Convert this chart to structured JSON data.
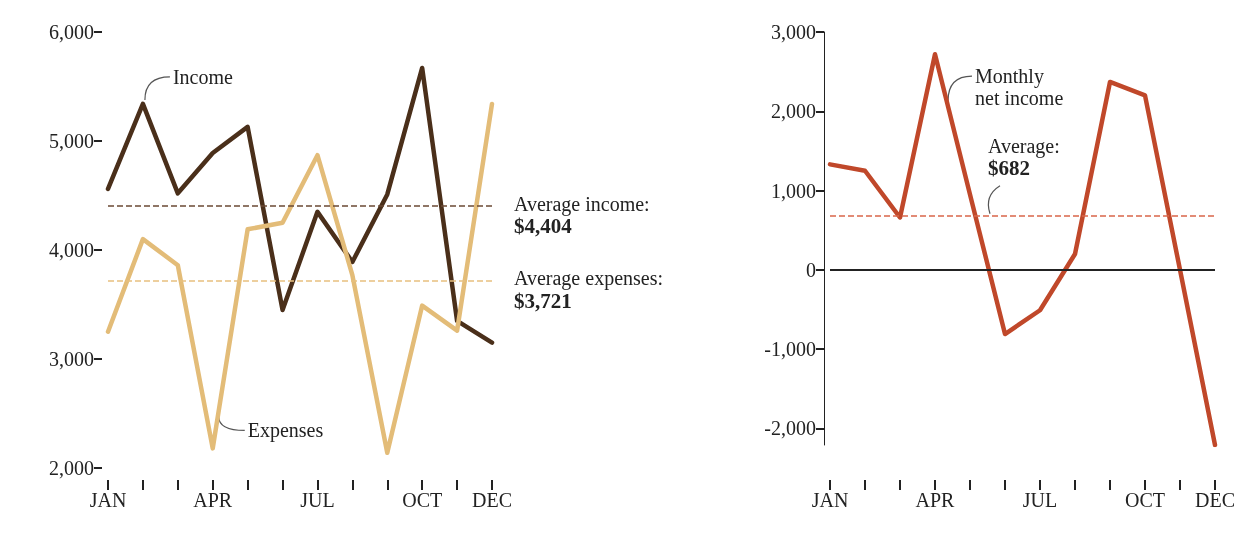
{
  "chart_data": [
    {
      "type": "line",
      "categories": [
        "JAN",
        null,
        null,
        "APR",
        null,
        null,
        "JUL",
        null,
        null,
        "OCT",
        null,
        "DEC"
      ],
      "ylim": [
        2000,
        6000
      ],
      "yticks": [
        {
          "value": 2000,
          "label": "2,000"
        },
        {
          "value": 3000,
          "label": "3,000"
        },
        {
          "value": 4000,
          "label": "4,000"
        },
        {
          "value": 5000,
          "label": "5,000"
        },
        {
          "value": 6000,
          "label": "6,000"
        }
      ],
      "series": [
        {
          "name": "Income",
          "color": "#4a2f1a",
          "values": [
            4560,
            5340,
            4520,
            4890,
            5130,
            3450,
            4350,
            3890,
            4510,
            5670,
            3350,
            3150
          ]
        },
        {
          "name": "Expenses",
          "color": "#e3bc78",
          "values": [
            3250,
            4100,
            3860,
            2180,
            4190,
            4250,
            4870,
            3770,
            2140,
            3490,
            3260,
            5340
          ]
        }
      ],
      "ref_lines": [
        {
          "axis": "y",
          "value": 4404,
          "label": "Average income: $4,404",
          "color": "#6b4a35",
          "line_style": "dashed"
        },
        {
          "axis": "y",
          "value": 3721,
          "label": "Average expenses: $3,721",
          "color": "#e8c07f",
          "line_style": "dashed"
        }
      ]
    },
    {
      "type": "line",
      "categories": [
        "JAN",
        null,
        null,
        "APR",
        null,
        null,
        "JUL",
        null,
        null,
        "OCT",
        null,
        "DEC"
      ],
      "ylim": [
        -2210,
        3000
      ],
      "yticks": [
        {
          "value": -2000,
          "label": "-2,000"
        },
        {
          "value": -1000,
          "label": "-1,000"
        },
        0,
        {
          "value": 1000,
          "label": "1,000"
        },
        {
          "value": 2000,
          "label": "2,000"
        },
        {
          "value": 3000,
          "label": "3,000"
        }
      ],
      "series": [
        {
          "name": "Monthly net income",
          "color": "#c0482a",
          "values": [
            1330,
            1250,
            660,
            2720,
            950,
            -810,
            -510,
            200,
            2370,
            2200,
            0,
            -2210
          ]
        }
      ],
      "ref_lines": [
        {
          "axis": "y",
          "value": 0,
          "color": "#222222",
          "line_style": "solid"
        },
        {
          "axis": "y",
          "value": 682,
          "label": "Average: $682",
          "color": "#d9654a",
          "line_style": "dashed"
        }
      ]
    }
  ]
}
